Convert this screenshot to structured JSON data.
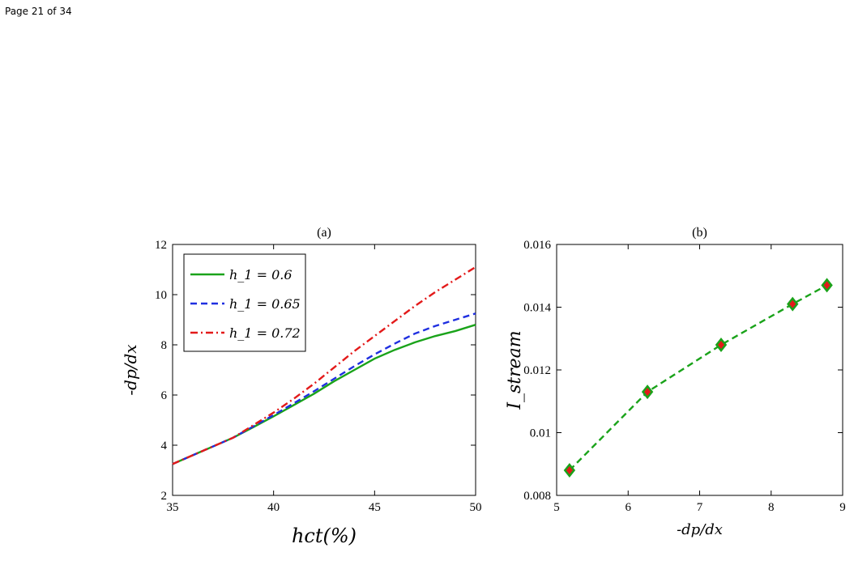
{
  "page": {
    "header": "Page 21 of 34"
  },
  "chart_data": [
    {
      "type": "line",
      "title": "(a)",
      "xlabel": "hct(%)",
      "ylabel": "-dp/dx",
      "xlim": [
        35,
        50
      ],
      "ylim": [
        2,
        12
      ],
      "xticks": [
        35,
        40,
        45,
        50
      ],
      "yticks": [
        2,
        4,
        6,
        8,
        10,
        12
      ],
      "legend_position": "top-left",
      "x": [
        35,
        36,
        37,
        38,
        39,
        40,
        41,
        42,
        43,
        44,
        45,
        46,
        47,
        48,
        49,
        50
      ],
      "series": [
        {
          "name": "h_1 = 0.6",
          "color": "#1aa31a",
          "dash": "solid",
          "values": [
            3.25,
            3.6,
            3.95,
            4.3,
            4.72,
            5.15,
            5.6,
            6.05,
            6.55,
            7.0,
            7.45,
            7.8,
            8.1,
            8.35,
            8.55,
            8.8
          ]
        },
        {
          "name": "h_1 = 0.65",
          "color": "#1f2fe0",
          "dash": "dashed",
          "values": [
            3.25,
            3.6,
            3.95,
            4.3,
            4.75,
            5.2,
            5.67,
            6.15,
            6.65,
            7.15,
            7.62,
            8.05,
            8.45,
            8.75,
            9.0,
            9.25
          ]
        },
        {
          "name": "h_1 = 0.72",
          "color": "#e31a1a",
          "dash": "dashdot",
          "values": [
            3.25,
            3.6,
            3.95,
            4.3,
            4.8,
            5.3,
            5.85,
            6.45,
            7.1,
            7.75,
            8.35,
            8.95,
            9.55,
            10.1,
            10.6,
            11.1
          ]
        }
      ]
    },
    {
      "type": "line",
      "title": "(b)",
      "xlabel": "-dp/dx",
      "ylabel": "I_stream",
      "xlim": [
        5,
        9
      ],
      "ylim": [
        0.008,
        0.016
      ],
      "xticks": [
        5,
        6,
        7,
        8,
        9
      ],
      "yticks": [
        0.008,
        0.01,
        0.012,
        0.014,
        0.016
      ],
      "ytick_labels": [
        "0.008",
        "0.01",
        "0.012",
        "0.014",
        "0.016"
      ],
      "series": [
        {
          "color": "#1aa31a",
          "marker": "diamond",
          "marker_face": "#e31a1a",
          "dash": "dashed",
          "x": [
            5.18,
            6.27,
            7.3,
            8.3,
            8.78
          ],
          "values": [
            0.0088,
            0.0113,
            0.0128,
            0.0141,
            0.0147
          ]
        }
      ]
    }
  ]
}
